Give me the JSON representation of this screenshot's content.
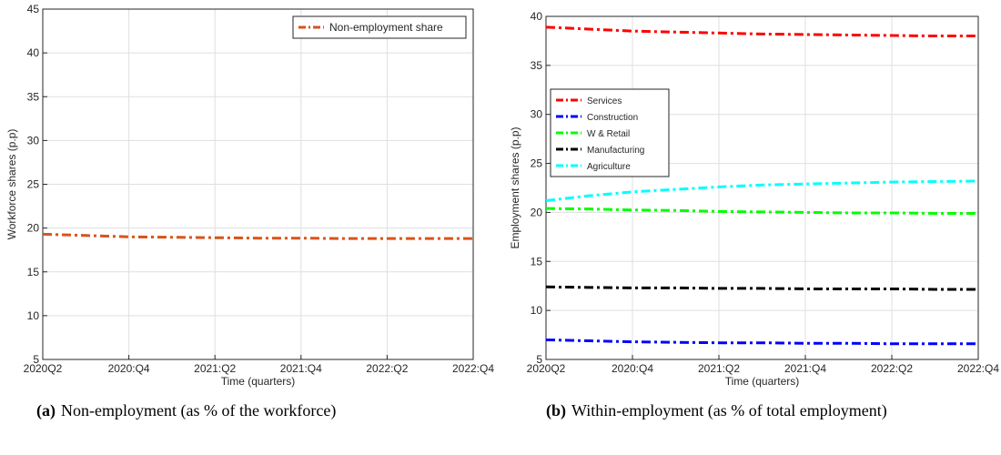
{
  "chart_data": [
    {
      "type": "line",
      "caption_label": "(a)",
      "caption": "Non-employment (as % of the workforce)",
      "xlabel": "Time (quarters)",
      "ylabel": "Workforce shares (p.p)",
      "categories": [
        "2020Q2",
        null,
        "2020:Q4",
        null,
        "2021:Q2",
        null,
        "2021:Q4",
        null,
        "2022:Q2",
        null,
        "2022:Q4"
      ],
      "series": [
        {
          "name": "Non-employment share",
          "color": "#d95319",
          "values": [
            19.3,
            19.15,
            19.0,
            18.95,
            18.9,
            18.85,
            18.85,
            18.8,
            18.8,
            18.8,
            18.8
          ]
        }
      ],
      "ylim": [
        5,
        45
      ],
      "yticks": [
        5,
        10,
        15,
        20,
        25,
        30,
        35,
        40,
        45
      ],
      "grid": true,
      "legend": "upper right"
    },
    {
      "type": "line",
      "caption_label": "(b)",
      "caption": "Within-employment (as % of total employment)",
      "xlabel": "Time (quarters)",
      "ylabel": "Employment shares (p.p)",
      "categories": [
        "2020Q2",
        null,
        "2020:Q4",
        null,
        "2021:Q2",
        null,
        "2021:Q4",
        null,
        "2022:Q2",
        null,
        "2022:Q4"
      ],
      "series": [
        {
          "name": "Services",
          "color": "#ff0000",
          "values": [
            38.9,
            38.7,
            38.5,
            38.4,
            38.3,
            38.2,
            38.15,
            38.1,
            38.05,
            38.0,
            38.0
          ]
        },
        {
          "name": "Construction",
          "color": "#0000ff",
          "values": [
            7.0,
            6.9,
            6.8,
            6.75,
            6.7,
            6.7,
            6.65,
            6.65,
            6.6,
            6.6,
            6.6
          ]
        },
        {
          "name": "W & Retail",
          "color": "#00ff00",
          "values": [
            20.4,
            20.35,
            20.25,
            20.2,
            20.1,
            20.05,
            20.0,
            19.95,
            19.95,
            19.9,
            19.9
          ]
        },
        {
          "name": "Manufacturing",
          "color": "#000000",
          "values": [
            12.4,
            12.35,
            12.3,
            12.3,
            12.25,
            12.25,
            12.2,
            12.2,
            12.2,
            12.15,
            12.15
          ]
        },
        {
          "name": "Agriculture",
          "color": "#00ffff",
          "values": [
            21.2,
            21.7,
            22.1,
            22.35,
            22.6,
            22.8,
            22.9,
            23.0,
            23.1,
            23.15,
            23.2
          ]
        }
      ],
      "ylim": [
        5,
        40
      ],
      "yticks": [
        5,
        10,
        15,
        20,
        25,
        30,
        35,
        40
      ],
      "grid": true,
      "legend": "upper left"
    }
  ]
}
